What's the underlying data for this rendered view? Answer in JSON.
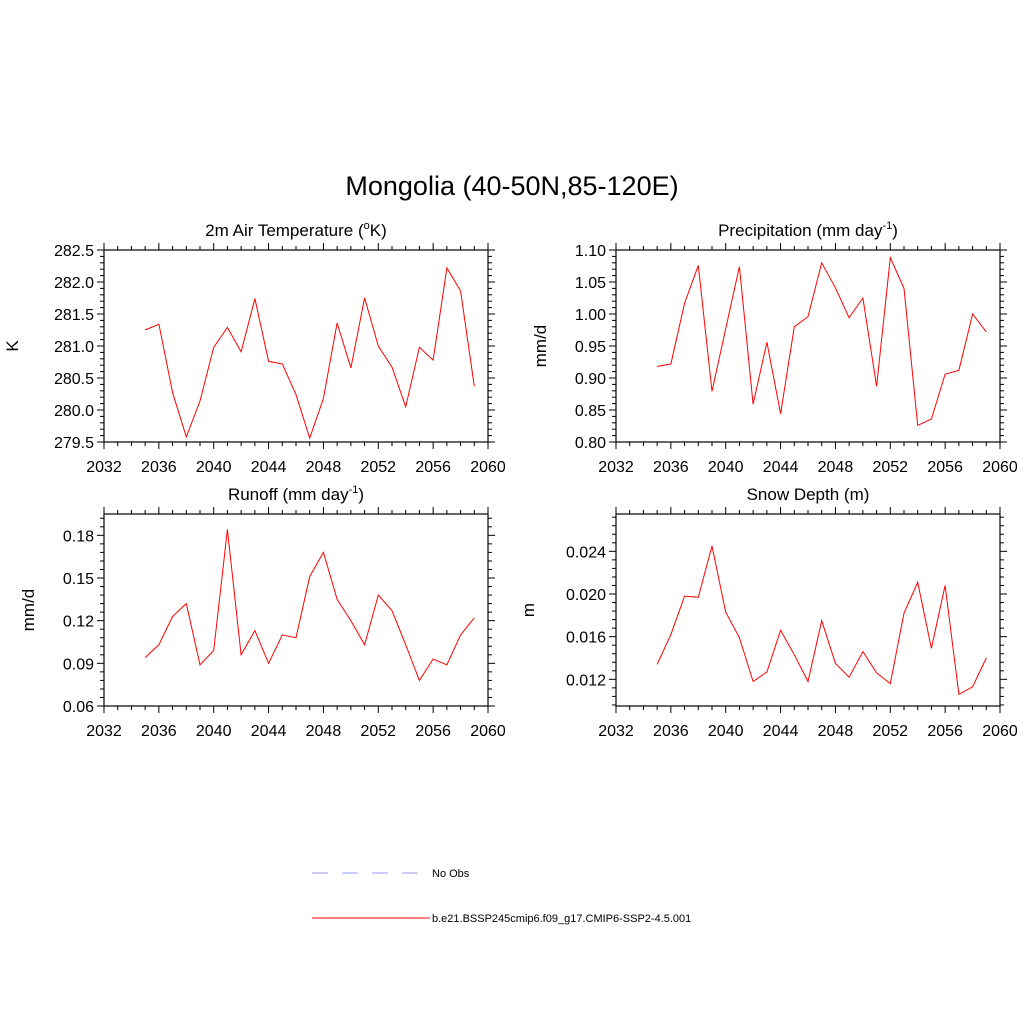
{
  "page": {
    "title": "Mongolia (40-50N,85-120E)"
  },
  "legend": {
    "items": [
      {
        "label": "No Obs",
        "color": "#9999ff",
        "dashed": true
      },
      {
        "label": "b.e21.BSSP245cmip6.f09_g17.CMIP6-SSP2-4.5.001",
        "color": "#ff0000",
        "dashed": false
      }
    ]
  },
  "chart_data": [
    {
      "type": "line",
      "title": "2m Air Temperature (°K)",
      "title_parts": [
        "2m Air Temperature (",
        "o",
        "K)"
      ],
      "ylabel": "K",
      "xlim": [
        2032,
        2060
      ],
      "ylim": [
        279.5,
        282.5
      ],
      "xticks": [
        "2032",
        "2036",
        "2040",
        "2044",
        "2048",
        "2052",
        "2056",
        "2060"
      ],
      "yticks": [
        "279.5",
        "280.0",
        "280.5",
        "281.0",
        "281.5",
        "282.0",
        "282.5"
      ],
      "series": [
        {
          "color": "#ff0000",
          "x": [
            2035,
            2036,
            2037,
            2038,
            2039,
            2040,
            2041,
            2042,
            2043,
            2044,
            2045,
            2046,
            2047,
            2048,
            2049,
            2050,
            2051,
            2052,
            2053,
            2054,
            2055,
            2056,
            2057,
            2058,
            2059
          ],
          "values": [
            281.25,
            281.34,
            280.27,
            279.58,
            280.14,
            280.98,
            281.29,
            280.91,
            281.74,
            280.76,
            280.72,
            280.24,
            279.56,
            280.18,
            281.36,
            280.66,
            281.75,
            281.0,
            280.67,
            280.05,
            280.98,
            280.78,
            282.22,
            281.86,
            280.37
          ]
        }
      ]
    },
    {
      "type": "line",
      "title": "Precipitation (mm day-1)",
      "title_parts": [
        "Precipitation (mm day",
        "-1",
        ")"
      ],
      "ylabel": "mm/d",
      "xlim": [
        2032,
        2060
      ],
      "ylim": [
        0.8,
        1.1
      ],
      "xticks": [
        "2032",
        "2036",
        "2040",
        "2044",
        "2048",
        "2052",
        "2056",
        "2060"
      ],
      "yticks": [
        "0.80",
        "0.85",
        "0.90",
        "0.95",
        "1.00",
        "1.05",
        "1.10"
      ],
      "series": [
        {
          "color": "#ff0000",
          "x": [
            2035,
            2036,
            2037,
            2038,
            2039,
            2040,
            2041,
            2042,
            2043,
            2044,
            2045,
            2046,
            2047,
            2048,
            2049,
            2050,
            2051,
            2052,
            2053,
            2054,
            2055,
            2056,
            2057,
            2058,
            2059
          ],
          "values": [
            0.918,
            0.922,
            1.017,
            1.076,
            0.879,
            0.977,
            1.074,
            0.859,
            0.956,
            0.844,
            0.98,
            0.996,
            1.08,
            1.041,
            0.994,
            1.025,
            0.887,
            1.088,
            1.04,
            0.826,
            0.836,
            0.906,
            0.912,
            1.0,
            0.972
          ]
        }
      ]
    },
    {
      "type": "line",
      "title": "Runoff (mm day-1)",
      "title_parts": [
        "Runoff (mm day",
        "-1",
        ")"
      ],
      "ylabel": "mm/d",
      "xlim": [
        2032,
        2060
      ],
      "ylim": [
        0.06,
        0.195
      ],
      "xticks": [
        "2032",
        "2036",
        "2040",
        "2044",
        "2048",
        "2052",
        "2056",
        "2060"
      ],
      "yticks": [
        "0.06",
        "0.09",
        "0.12",
        "0.15",
        "0.18"
      ],
      "series": [
        {
          "color": "#ff0000",
          "x": [
            2035,
            2036,
            2037,
            2038,
            2039,
            2040,
            2041,
            2042,
            2043,
            2044,
            2045,
            2046,
            2047,
            2048,
            2049,
            2050,
            2051,
            2052,
            2053,
            2054,
            2055,
            2056,
            2057,
            2058,
            2059
          ],
          "values": [
            0.094,
            0.103,
            0.123,
            0.132,
            0.089,
            0.099,
            0.184,
            0.096,
            0.113,
            0.09,
            0.11,
            0.108,
            0.151,
            0.168,
            0.135,
            0.12,
            0.103,
            0.138,
            0.127,
            0.103,
            0.078,
            0.093,
            0.089,
            0.11,
            0.122
          ]
        }
      ]
    },
    {
      "type": "line",
      "title": "Snow Depth (m)",
      "title_parts": [
        "Snow Depth (m)",
        "",
        ""
      ],
      "ylabel": "m",
      "xlim": [
        2032,
        2060
      ],
      "ylim": [
        0.0095,
        0.0275
      ],
      "xticks": [
        "2032",
        "2036",
        "2040",
        "2044",
        "2048",
        "2052",
        "2056",
        "2060"
      ],
      "yticks": [
        "0.012",
        "0.016",
        "0.020",
        "0.024"
      ],
      "series": [
        {
          "color": "#ff0000",
          "x": [
            2035,
            2036,
            2037,
            2038,
            2039,
            2040,
            2041,
            2042,
            2043,
            2044,
            2045,
            2046,
            2047,
            2048,
            2049,
            2050,
            2051,
            2052,
            2053,
            2054,
            2055,
            2056,
            2057,
            2058,
            2059
          ],
          "values": [
            0.0134,
            0.0162,
            0.0198,
            0.0197,
            0.0245,
            0.0183,
            0.0159,
            0.0118,
            0.0127,
            0.0166,
            0.0143,
            0.0118,
            0.0175,
            0.0135,
            0.0122,
            0.0146,
            0.0126,
            0.0116,
            0.0182,
            0.0211,
            0.0149,
            0.0208,
            0.0106,
            0.0113,
            0.014
          ]
        }
      ]
    }
  ]
}
